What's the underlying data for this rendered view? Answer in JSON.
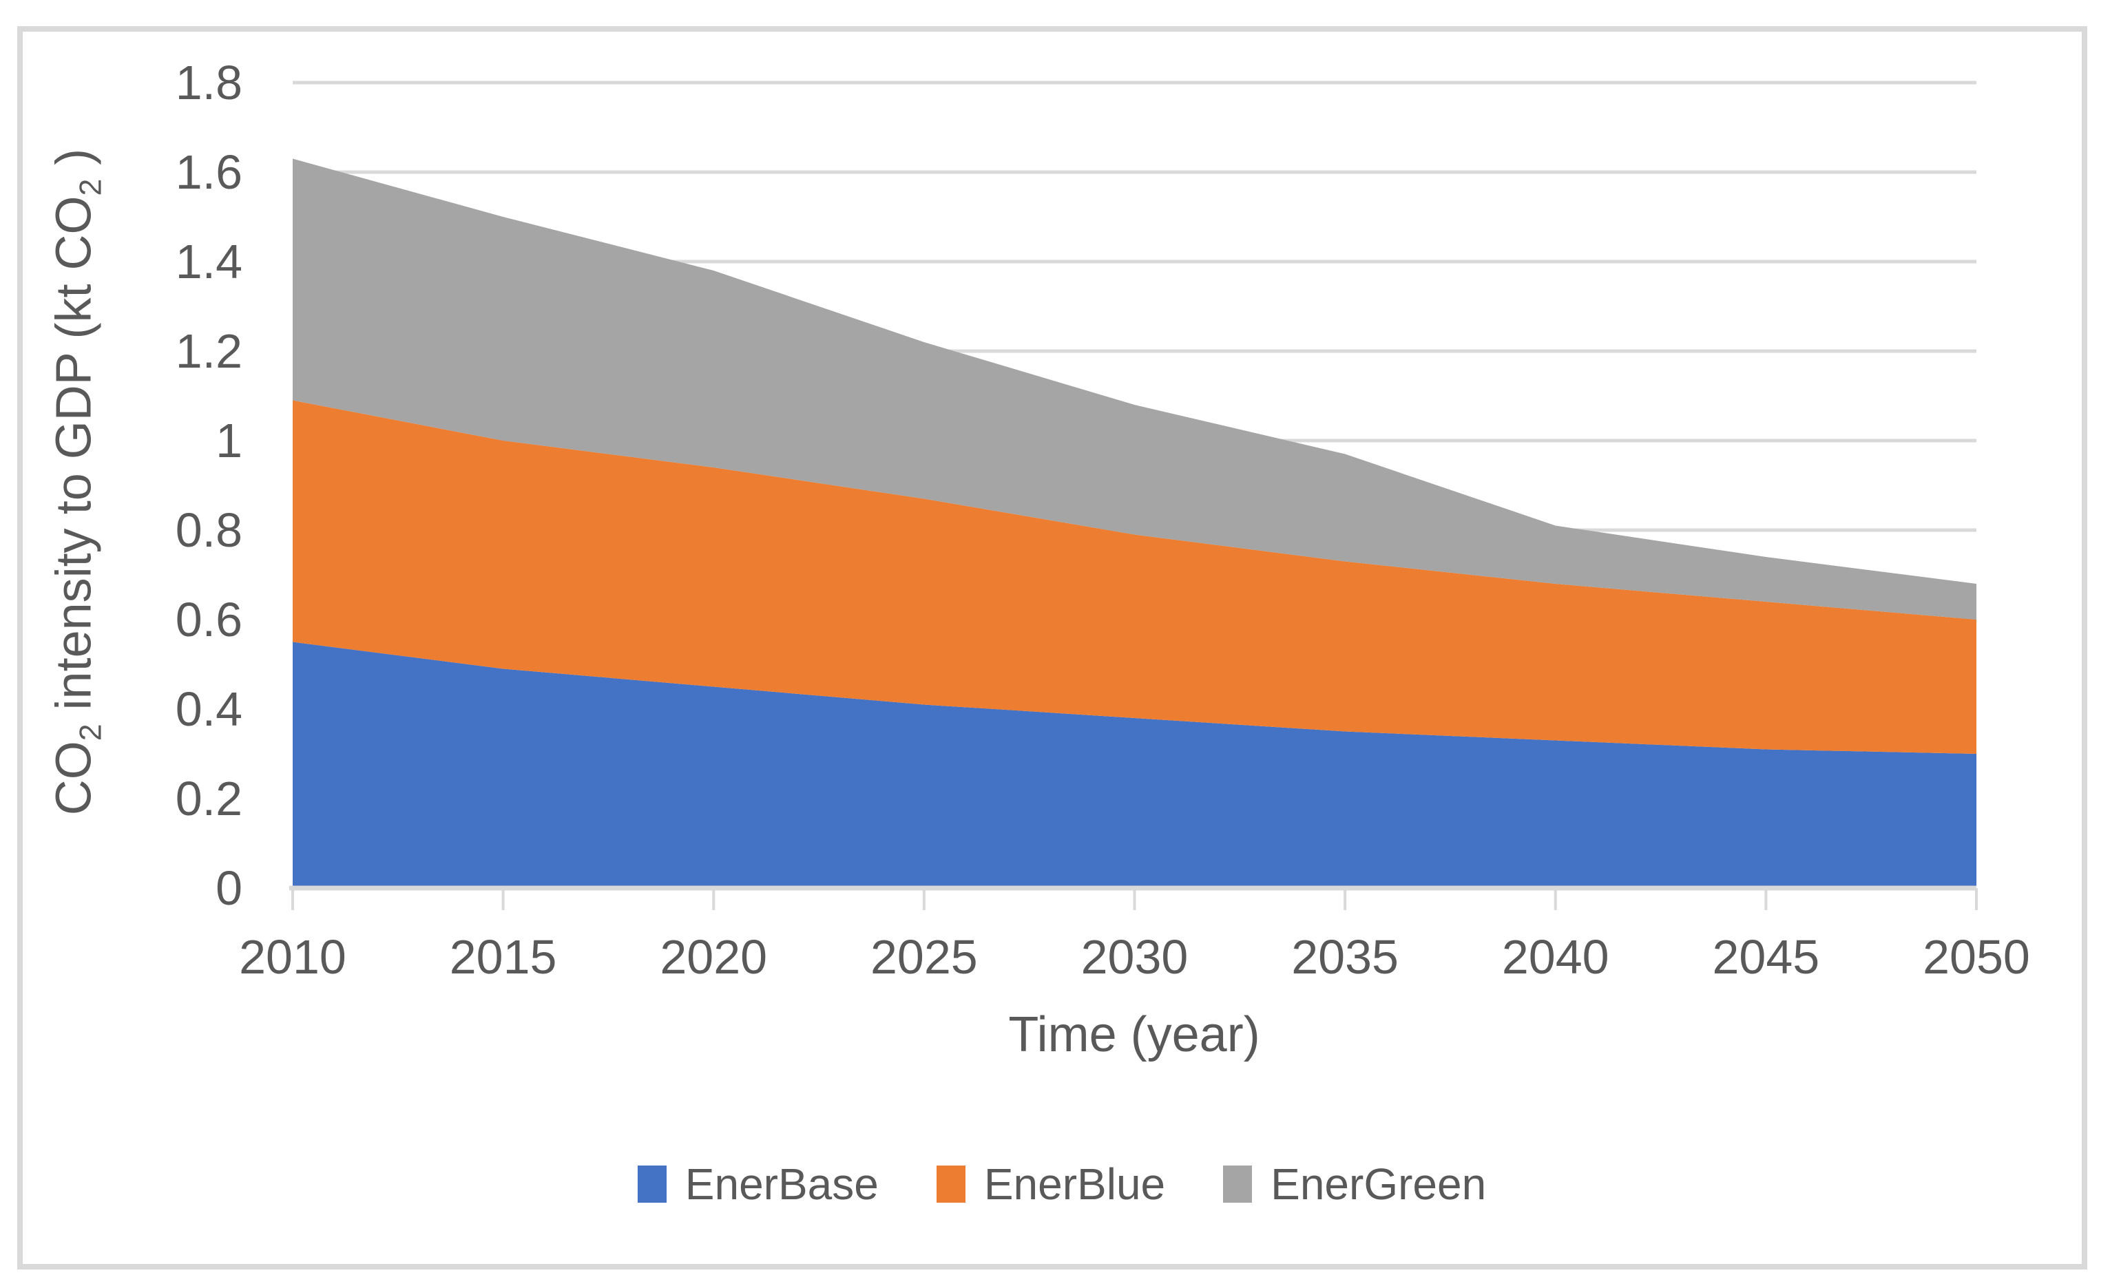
{
  "style": {
    "frame_color": "#d9d9d9",
    "gridline_color": "#d9d9d9",
    "axis_line_color": "#d9d9d9",
    "tick_mark_color": "#d9d9d9",
    "text_color": "#595959",
    "background": "#ffffff"
  },
  "axis": {
    "x": {
      "title": "Time (year)"
    },
    "y": {
      "title_parts": {
        "pre": "CO",
        "sub1": "2",
        "mid": " intensity to GDP (kt CO",
        "sub2": "2",
        "post": " )"
      }
    }
  },
  "legend": {
    "items": [
      {
        "label": "EnerBase",
        "color": "#4472C4"
      },
      {
        "label": "EnerBlue",
        "color": "#ED7D31"
      },
      {
        "label": "EnerGreen",
        "color": "#A5A5A5"
      }
    ],
    "position": "bottom"
  },
  "chart_data": {
    "type": "area",
    "stacked": true,
    "title": "",
    "xlabel": "Time (year)",
    "ylabel": "CO2 intensity to GDP (kt CO2 )",
    "categories": [
      2010,
      2015,
      2020,
      2025,
      2030,
      2035,
      2040,
      2045,
      2050
    ],
    "series": [
      {
        "name": "EnerBase",
        "color": "#4472C4",
        "values": [
          0.55,
          0.49,
          0.45,
          0.41,
          0.38,
          0.35,
          0.33,
          0.31,
          0.3
        ]
      },
      {
        "name": "EnerBlue",
        "color": "#ED7D31",
        "values": [
          0.54,
          0.51,
          0.49,
          0.46,
          0.41,
          0.38,
          0.35,
          0.33,
          0.3
        ]
      },
      {
        "name": "EnerGreen",
        "color": "#A5A5A5",
        "values": [
          0.54,
          0.5,
          0.44,
          0.35,
          0.29,
          0.24,
          0.13,
          0.1,
          0.08
        ]
      }
    ],
    "stacked_totals": [
      1.63,
      1.5,
      1.38,
      1.23,
      1.08,
      0.97,
      0.81,
      0.74,
      0.68
    ],
    "ylim": [
      0,
      1.8
    ],
    "ytick_labels": [
      "0",
      "0.2",
      "0.4",
      "0.6",
      "0.8",
      "1",
      "1.2",
      "1.4",
      "1.6",
      "1.8"
    ],
    "ytick_values": [
      0,
      0.2,
      0.4,
      0.6,
      0.8,
      1.0,
      1.2,
      1.4,
      1.6,
      1.8
    ],
    "xtick_labels": [
      "2010",
      "2015",
      "2020",
      "2025",
      "2030",
      "2035",
      "2040",
      "2045",
      "2050"
    ],
    "grid": true,
    "legend_position": "bottom"
  }
}
